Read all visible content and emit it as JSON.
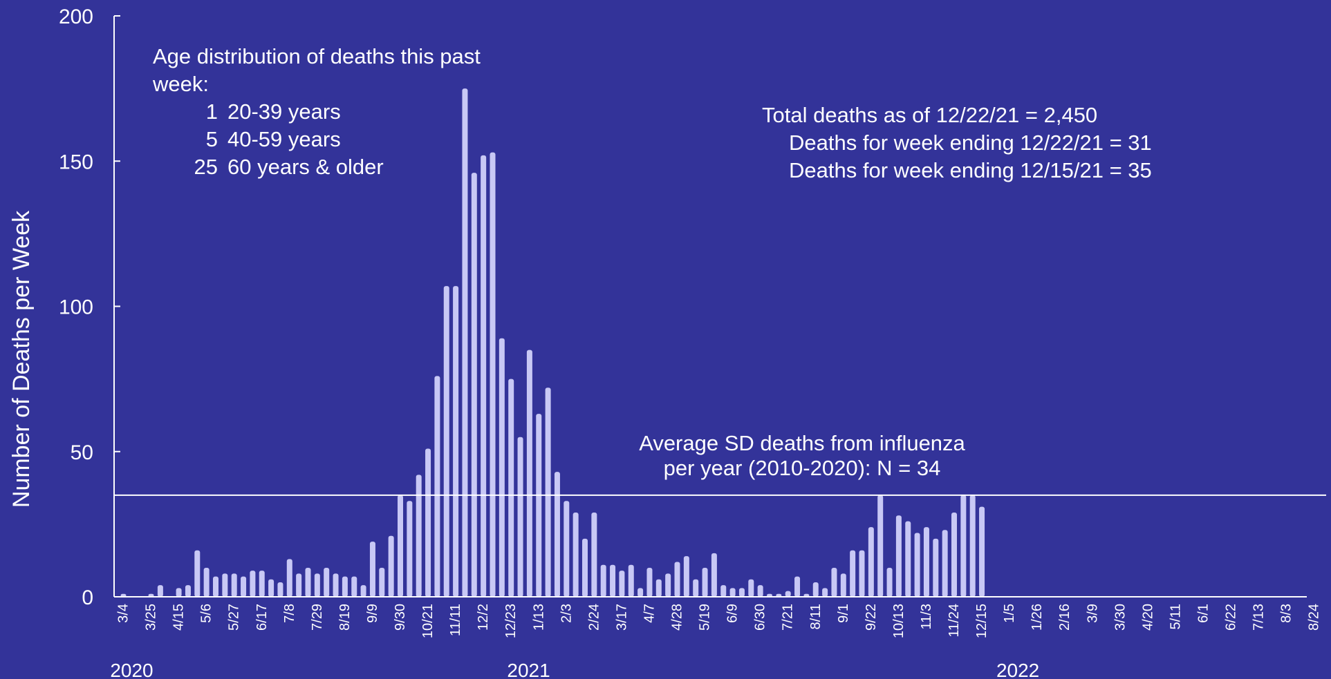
{
  "chart_data": {
    "type": "bar",
    "title": "",
    "ylabel": "Number of Deaths per Week",
    "xlabel": "",
    "ylim": [
      0,
      200
    ],
    "y_ticks": [
      0,
      50,
      100,
      150,
      200
    ],
    "grid": false,
    "bar_color": "#c8c8f5",
    "line_color": "#ffffff",
    "background": "#333399",
    "x_start_date": "2020-03-04",
    "x_step_days": 7,
    "week_count": 131,
    "x_tick_labels": [
      "3/4",
      "3/25",
      "4/15",
      "5/6",
      "5/27",
      "6/17",
      "7/8",
      "7/29",
      "8/19",
      "9/9",
      "9/30",
      "10/21",
      "11/11",
      "12/2",
      "12/23",
      "1/13",
      "2/3",
      "2/24",
      "3/17",
      "4/7",
      "4/28",
      "5/19",
      "6/9",
      "6/30",
      "7/21",
      "8/11",
      "9/1",
      "9/22",
      "10/13",
      "11/3",
      "11/24",
      "12/15",
      "1/5",
      "1/26",
      "2/16",
      "3/9",
      "3/30",
      "4/20",
      "5/11",
      "6/1",
      "6/22",
      "7/13",
      "8/3",
      "8/24"
    ],
    "year_labels": [
      {
        "text": "2020",
        "week": 0
      },
      {
        "text": "2021",
        "week": 43
      },
      {
        "text": "2022",
        "week": 96
      }
    ],
    "values": [
      1,
      0,
      0,
      1,
      4,
      0,
      3,
      4,
      16,
      10,
      7,
      8,
      8,
      7,
      9,
      9,
      6,
      5,
      13,
      8,
      10,
      8,
      10,
      8,
      7,
      7,
      4,
      19,
      10,
      21,
      35,
      33,
      42,
      51,
      76,
      107,
      107,
      175,
      146,
      152,
      153,
      89,
      75,
      55,
      85,
      63,
      72,
      43,
      33,
      29,
      20,
      29,
      11,
      11,
      9,
      11,
      3,
      10,
      6,
      8,
      12,
      14,
      6,
      10,
      15,
      4,
      3,
      3,
      6,
      4,
      1,
      1,
      2,
      7,
      1,
      5,
      3,
      10,
      8,
      16,
      16,
      24,
      35,
      10,
      28,
      26,
      22,
      24,
      20,
      23,
      29,
      35,
      35,
      31
    ],
    "reference_line": {
      "value": 35
    }
  },
  "annotations": {
    "age": {
      "heading_line1": "Age distribution of deaths this past",
      "heading_line2": "week:",
      "rows": [
        {
          "count": "1",
          "label": "20-39 years"
        },
        {
          "count": "5",
          "label": "40-59 years"
        },
        {
          "count": "25",
          "label": "60 years & older"
        }
      ]
    },
    "totals": {
      "line1": "Total deaths as of 12/22/21 = 2,450",
      "line2": "Deaths for week ending 12/22/21 = 31",
      "line3": "Deaths for week ending 12/15/21 = 35"
    },
    "average": {
      "line1": "Average SD deaths from influenza",
      "line2": "per year (2010-2020):  N = 34"
    }
  }
}
